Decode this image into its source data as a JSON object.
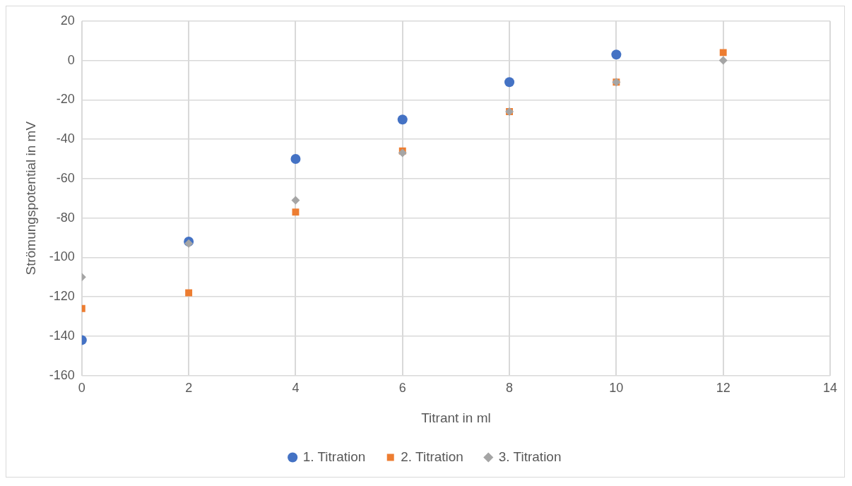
{
  "chart_data": {
    "type": "scatter",
    "xlabel": "Titrant in ml",
    "ylabel": "Strömungspotential in mV",
    "x": [
      0,
      2,
      4,
      6,
      8,
      10,
      12
    ],
    "series": [
      {
        "name": "1. Titration",
        "color": "#4472c4",
        "marker": "circle",
        "values": [
          -142,
          -92,
          -50,
          -30,
          -11,
          3,
          null
        ]
      },
      {
        "name": "2. Titration",
        "color": "#ed7d31",
        "marker": "square",
        "values": [
          -126,
          -118,
          -77,
          -46,
          -26,
          -11,
          4
        ]
      },
      {
        "name": "3. Titration",
        "color": "#a5a5a5",
        "marker": "diamond",
        "values": [
          -110,
          -93,
          -71,
          -47,
          -26,
          -11,
          0
        ]
      }
    ],
    "xlim": [
      0,
      14
    ],
    "xticks": [
      0,
      2,
      4,
      6,
      8,
      10,
      12,
      14
    ],
    "ylim": [
      -160,
      20
    ],
    "yticks": [
      -160,
      -140,
      -120,
      -100,
      -80,
      -60,
      -40,
      -20,
      0,
      20
    ],
    "grid": true,
    "legend": "bottom"
  }
}
